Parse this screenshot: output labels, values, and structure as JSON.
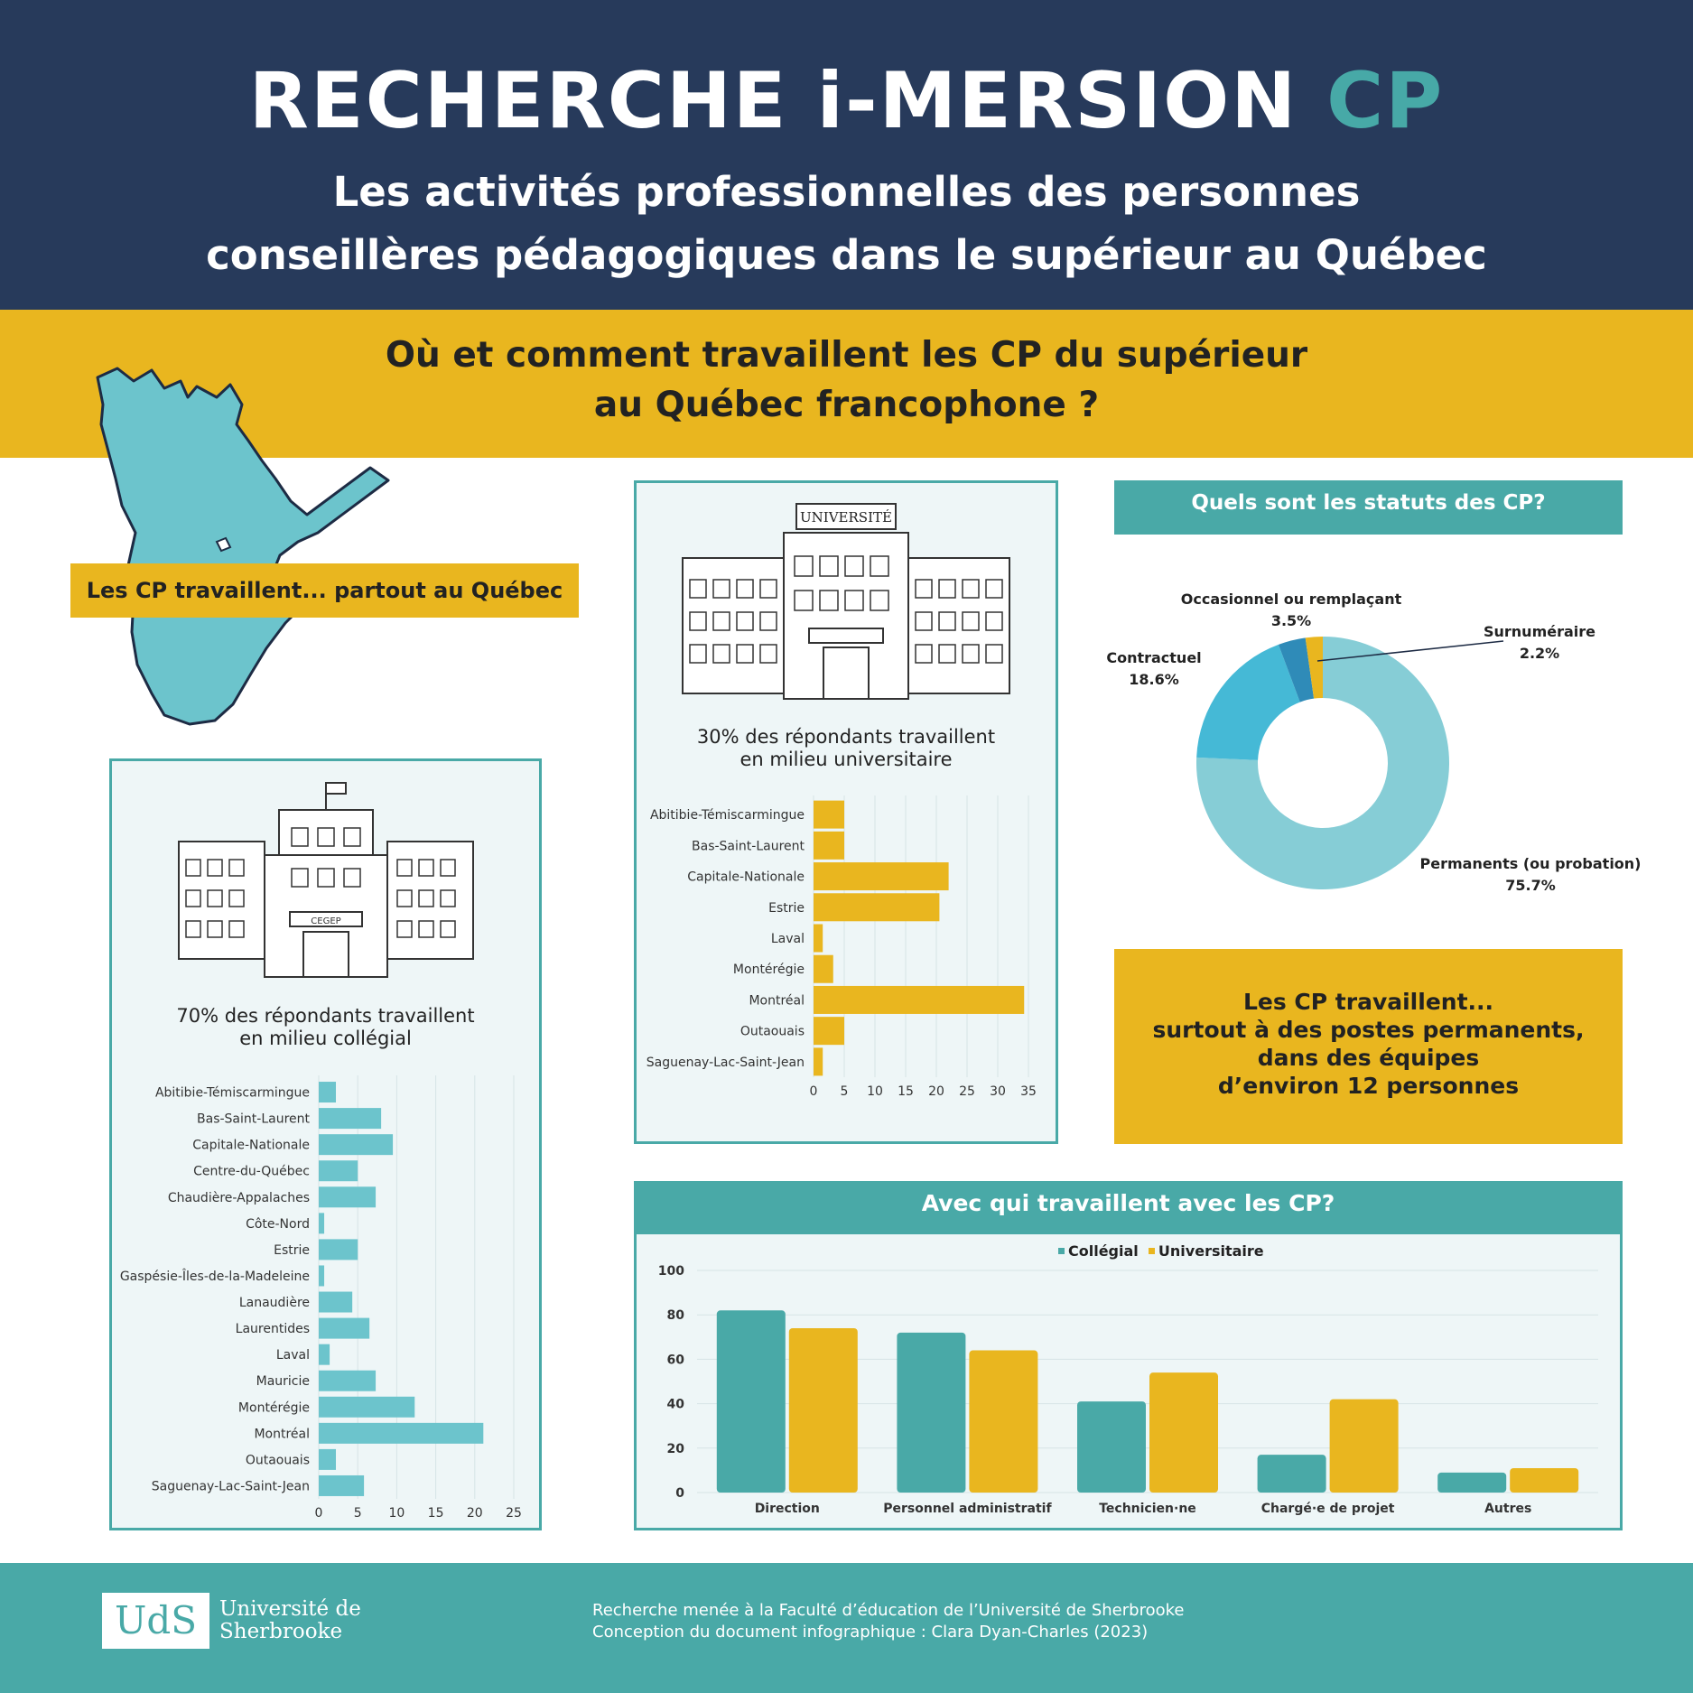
{
  "header": {
    "brand": "RECHERCHE i-MERSION",
    "brand_accent": "CP",
    "subtitle_line1": "Les activités professionnelles des personnes",
    "subtitle_line2": "conseillères pédagogiques dans le supérieur au Québec"
  },
  "question": {
    "line1": "Où et comment travaillent les CP du supérieur",
    "line2": "au Québec francophone ?"
  },
  "tags": {
    "partout": "Les CP travaillent... partout au Québec",
    "statuts_title": "Quels sont les statuts des CP?",
    "summary_l1": "Les CP travaillent...",
    "summary_l2": "surtout à des postes permanents,",
    "summary_l3": "dans des équipes",
    "summary_l4": "d’environ 12 personnes",
    "collab_title": "Avec qui travaillent avec les CP?"
  },
  "buildings": {
    "universite_sign": "UNIVERSITÉ",
    "cegep_sign": "CEGEP"
  },
  "captions": {
    "college_l1": "70% des répondants travaillent",
    "college_l2": "en milieu collégial",
    "univ_l1": "30% des répondants travaillent",
    "univ_l2": "en milieu universitaire"
  },
  "footer": {
    "logo": "UdS",
    "uni_l1": "Université de",
    "uni_l2": "Sherbrooke",
    "credit_l1": "Recherche menée à la Faculté d’éducation de l’Université de Sherbrooke",
    "credit_l2": "Conception du document infographique : Clara Dyan-Charles (2023)"
  },
  "colors": {
    "navy": "#273a5b",
    "yellow": "#e9b61f",
    "teal": "#49a9a7",
    "light_teal": "#6cc4cc"
  },
  "chart_data": [
    {
      "id": "college",
      "type": "bar",
      "orientation": "horizontal",
      "categories": [
        "Abitibie-Témiscarmingue",
        "Bas-Saint-Laurent",
        "Capitale-Nationale",
        "Centre-du-Québec",
        "Chaudière-Appalaches",
        "Côte-Nord",
        "Estrie",
        "Gaspésie-Îles-de-la-Madeleine",
        "Lanaudière",
        "Laurentides",
        "Laval",
        "Mauricie",
        "Montérégie",
        "Montréal",
        "Outaouais",
        "Saguenay-Lac-Saint-Jean"
      ],
      "values": [
        2.2,
        8,
        9.5,
        5,
        7.3,
        0.7,
        5,
        0.7,
        4.3,
        6.5,
        1.4,
        7.3,
        12.3,
        21.1,
        2.2,
        5.8
      ],
      "xlim": [
        0,
        25
      ],
      "xticks": [
        "0",
        "5",
        "10",
        "15",
        "20",
        "25"
      ],
      "color": "#6cc4cc",
      "grid": true
    },
    {
      "id": "universite",
      "type": "bar",
      "orientation": "horizontal",
      "categories": [
        "Abitibie-Témiscarmingue",
        "Bas-Saint-Laurent",
        "Capitale-Nationale",
        "Estrie",
        "Laval",
        "Montérégie",
        "Montréal",
        "Outaouais",
        "Saguenay-Lac-Saint-Jean"
      ],
      "values": [
        5,
        5,
        22,
        20.5,
        1.5,
        3.2,
        34.3,
        5,
        1.5
      ],
      "xlim": [
        0,
        35
      ],
      "xticks": [
        "0",
        "5",
        "10",
        "15",
        "20",
        "25",
        "30",
        "35"
      ],
      "color": "#e9b61f",
      "grid": true
    },
    {
      "id": "statuts",
      "type": "pie",
      "donut": true,
      "slices": [
        {
          "label": "Permanents (ou probation)",
          "value": 75.7,
          "display": "75.7%",
          "color": "#86cdd6"
        },
        {
          "label": "Contractuel",
          "value": 18.6,
          "display": "18.6%",
          "color": "#45b9d6"
        },
        {
          "label": "Occasionnel ou remplaçant",
          "value": 3.5,
          "display": "3.5%",
          "color": "#2f8bb8"
        },
        {
          "label": "Surnuméraire",
          "value": 2.2,
          "display": "2.2%",
          "color": "#e9b61f"
        }
      ]
    },
    {
      "id": "collaboration",
      "type": "bar",
      "categories": [
        "Direction",
        "Personnel administratif",
        "Technicien·ne",
        "Chargé·e de projet",
        "Autres"
      ],
      "series": [
        {
          "name": "Collégial",
          "values": [
            82,
            72,
            41,
            17,
            9
          ],
          "color": "#49a9a7"
        },
        {
          "name": "Universitaire",
          "values": [
            74,
            64,
            54,
            42,
            11
          ],
          "color": "#e9b61f"
        }
      ],
      "ylim": [
        0,
        100
      ],
      "yticks": [
        "0",
        "20",
        "40",
        "60",
        "80",
        "100"
      ],
      "grid": true,
      "legend": "top-center"
    }
  ]
}
